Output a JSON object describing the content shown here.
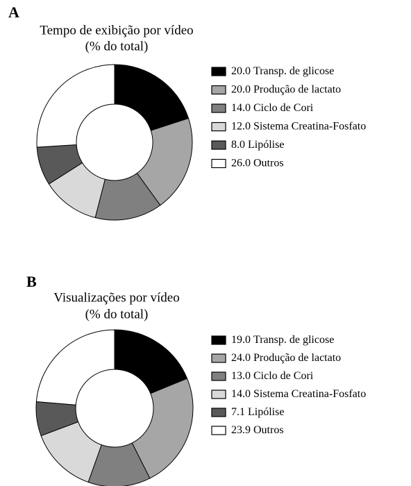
{
  "chart_data": [
    {
      "type": "donut",
      "panel_label": "A",
      "title": "Tempo de exibição por vídeo",
      "subtitle": "(% do total)",
      "categories": [
        "Transp. de glicose",
        "Produção de lactato",
        "Ciclo de Cori",
        "Sistema Creatina-Fosfato",
        "Lipólise",
        "Outros"
      ],
      "values": [
        20,
        20,
        14,
        12,
        8,
        26
      ],
      "value_labels": [
        "20.0",
        "20.0",
        "14.0",
        "12.0",
        "8.0",
        "26.0"
      ],
      "colors": [
        "#000000",
        "#a6a6a6",
        "#808080",
        "#d9d9d9",
        "#595959",
        "#ffffff"
      ]
    },
    {
      "type": "donut",
      "panel_label": "B",
      "title": "Visualizações por vídeo",
      "subtitle": "(% do total)",
      "categories": [
        "Transp. de glicose",
        "Produção de lactato",
        "Ciclo de Cori",
        "Sistema Creatina-Fosfato",
        "Lipólise",
        "Outros"
      ],
      "values": [
        19,
        24,
        13,
        14,
        7.1,
        23.9
      ],
      "value_labels": [
        "19.0",
        "24.0",
        "13.0",
        "14.0",
        "7.1",
        "23.9"
      ],
      "colors": [
        "#000000",
        "#a6a6a6",
        "#808080",
        "#d9d9d9",
        "#595959",
        "#ffffff"
      ]
    }
  ]
}
